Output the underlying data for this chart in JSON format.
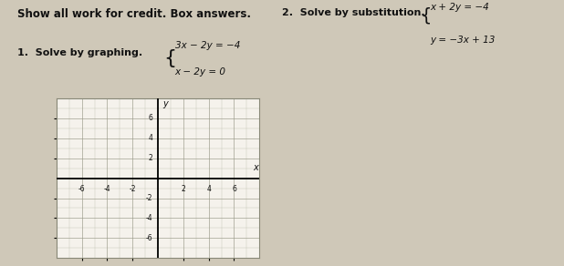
{
  "page_bg": "#cfc8b8",
  "grid_bg": "#f5f2ec",
  "header_text": "Show all work for credit. Box answers.",
  "problem1_label": "1.  Solve by graphing.",
  "problem1_eq1": "3x − 2y = −4",
  "problem1_eq2": "x − 2y = 0",
  "problem2_label": "2.  Solve by substitution.",
  "problem2_eq1": "x + 2y = −4",
  "problem2_eq2": "y = −3x + 13",
  "grid_xlim": [
    -8,
    8
  ],
  "grid_ylim": [
    -8,
    8
  ],
  "tick_even": [
    -6,
    -4,
    -2,
    2,
    4,
    6
  ],
  "tick_labels": [
    "-6",
    "-4",
    "-2",
    "2",
    "4",
    "6"
  ],
  "font_color": "#111111",
  "header_fontsize": 8.5,
  "label_fontsize": 8,
  "eq_fontsize": 7.5,
  "axis_label_fontsize": 7,
  "tick_fontsize": 5.5,
  "grid_minor_color": "#bbbbaa",
  "grid_major_color": "#999988",
  "axis_lw": 1.3,
  "spine_color": "#888877"
}
